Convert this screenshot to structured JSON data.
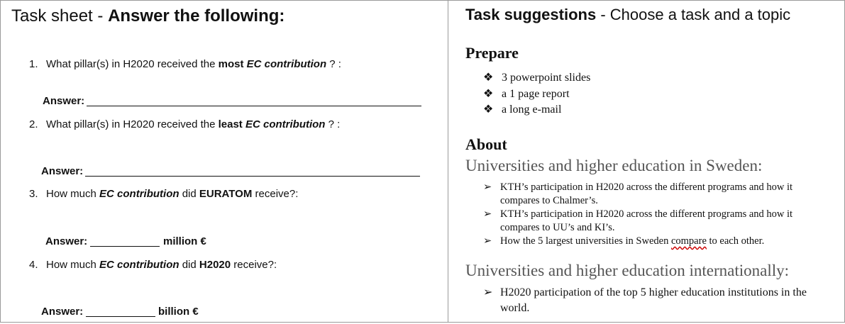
{
  "left": {
    "title_plain": "Task sheet - ",
    "title_bold": "Answer the following:",
    "questions": [
      {
        "num": "1.",
        "pre": "What pillar(s) in H2020 received the ",
        "b1": "most",
        "sp": " ",
        "bi": "EC contribution",
        "post": " ? :",
        "answer": "Answer:"
      },
      {
        "num": "2.",
        "pre": "What pillar(s) in H2020 received the ",
        "b1": "least",
        "sp": " ",
        "bi": "EC contribution",
        "post": " ? :",
        "answer": "Answer:"
      },
      {
        "num": "3.",
        "pre": "How much ",
        "bi": "EC contribution",
        "mid": " did ",
        "b1": "EURATOM",
        "post": " receive?:",
        "answer": "Answer:",
        "unit": "million €"
      },
      {
        "num": "4.",
        "pre": "How much ",
        "bi": "EC contribution",
        "mid": " did ",
        "b1": "H2020",
        "post": " receive?:",
        "answer": "Answer:",
        "unit": "billion €"
      }
    ]
  },
  "right": {
    "title_bold": "Task suggestions",
    "title_plain": " - Choose a task and a topic",
    "prepare_heading": "Prepare",
    "prepare_items": [
      "3 powerpoint slides",
      "a 1 page report",
      "a long e-mail"
    ],
    "about_heading": "About",
    "sweden_heading": "Universities and higher education in Sweden:",
    "sweden_items": [
      "KTH’s participation in H2020 across the different programs and how it compares to Chalmer’s.",
      "KTH’s participation in H2020 across the different programs and how it compares to UU’s and KI’s."
    ],
    "sweden_item3_pre": "How the 5 largest universities in Sweden ",
    "sweden_item3_word": "compare",
    "sweden_item3_post": " to each other.",
    "intl_heading": "Universities and higher education internationally:",
    "intl_items": [
      "H2020 participation of the top 5 higher education institutions in the world."
    ],
    "symbols": {
      "diamond": "❖",
      "arrow": "➢"
    }
  }
}
